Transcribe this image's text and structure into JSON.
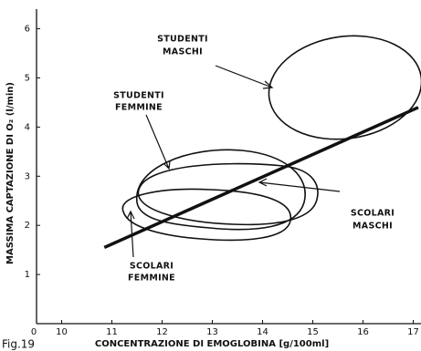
{
  "chart_data": {
    "type": "line",
    "x_label": "CONCENTRAZIONE  DI  EMOGLOBINA  [g/100ml]",
    "y_label": "MASSIMA  CAPTAZIONE  DI  O₂  (l/min)",
    "figure_label": "Fig.19",
    "x_origin_label": "0",
    "x": [
      10.85,
      17.1
    ],
    "series": [
      {
        "color": "#111111",
        "values": [
          1.55,
          4.4
        ]
      }
    ],
    "xlim": [
      9.5,
      17.1
    ],
    "xticks": [
      10,
      11,
      12,
      13,
      14,
      15,
      16,
      17
    ],
    "ylim": [
      0,
      6.4
    ],
    "yticks": [
      1,
      2,
      3,
      4,
      5,
      6
    ],
    "annotations": [
      [
        "STUDENTI",
        "MASCHI"
      ],
      [
        "STUDENTI",
        "FEMMINE"
      ],
      [
        "SCOLARI",
        "MASCHI"
      ],
      [
        "SCOLARI",
        "FEMMINE"
      ]
    ]
  }
}
